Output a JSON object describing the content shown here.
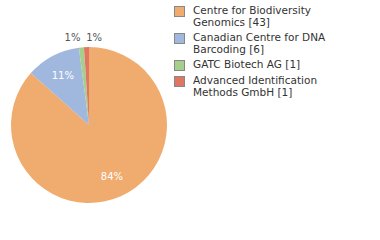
{
  "chart_data": {
    "type": "pie",
    "categories": [
      "Centre for Biodiversity Genomics [43]",
      "Canadian Centre for DNA Barcoding [6]",
      "GATC Biotech AG [1]",
      "Advanced Identification Methods GmbH [1]"
    ],
    "values": [
      84,
      11,
      1,
      1
    ],
    "value_labels": [
      "84%",
      "11%",
      "1%",
      "1%"
    ],
    "colors": [
      "#f0ac6e",
      "#a0b8de",
      "#a6cf8c",
      "#e07562"
    ],
    "data_labels": true,
    "legend": "right"
  }
}
